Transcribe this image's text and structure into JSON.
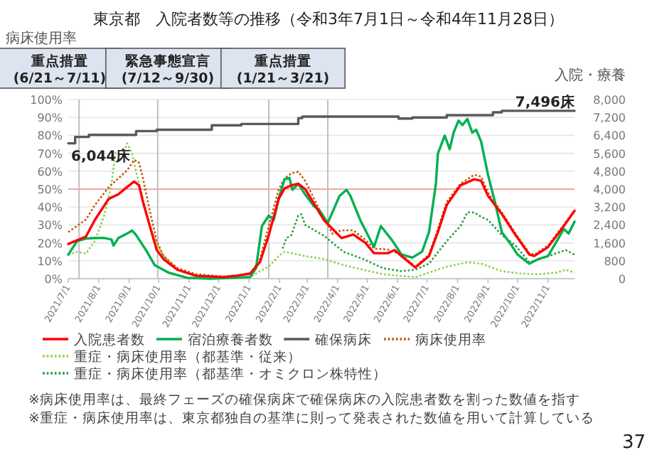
{
  "chart_data": {
    "type": "line",
    "title": "東京都　入院者数等の推移（令和3年7月1日～令和4年11月28日）",
    "ylabel": "病床使用率",
    "y2label": "入院・療養",
    "xlim": [
      "2021-07-01",
      "2022-11-28"
    ],
    "ylim": [
      0,
      100
    ],
    "xticks": [
      {
        "value": "2021-07-01",
        "label": "2021/7/1"
      },
      {
        "value": "2021-08-01",
        "label": "2021/8/1"
      },
      {
        "value": "2021-09-01",
        "label": "2021/9/1"
      },
      {
        "value": "2021-10-01",
        "label": "2021/10/1"
      },
      {
        "value": "2021-11-01",
        "label": "2021/11/1"
      },
      {
        "value": "2021-12-01",
        "label": "2021/12/1"
      },
      {
        "value": "2022-01-01",
        "label": "2022/1/1"
      },
      {
        "value": "2022-02-01",
        "label": "2022/2/1"
      },
      {
        "value": "2022-03-01",
        "label": "2022/3/1"
      },
      {
        "value": "2022-04-01",
        "label": "2022/4/1"
      },
      {
        "value": "2022-05-01",
        "label": "2022/5/1"
      },
      {
        "value": "2022-06-01",
        "label": "2022/6/1"
      },
      {
        "value": "2022-07-01",
        "label": "2022/7/1"
      },
      {
        "value": "2022-08-01",
        "label": "2022/8/1"
      },
      {
        "value": "2022-09-01",
        "label": "2022/9/1"
      },
      {
        "value": "2022-10-01",
        "label": "2022/10/1"
      },
      {
        "value": "2022-11-01",
        "label": "2022/11/1"
      }
    ],
    "yticks": [
      {
        "value": 0,
        "label": "0%"
      },
      {
        "value": 10,
        "label": "10%"
      },
      {
        "value": 20,
        "label": "20%"
      },
      {
        "value": 30,
        "label": "30%"
      },
      {
        "value": 40,
        "label": "40%"
      },
      {
        "value": 50,
        "label": "50%"
      },
      {
        "value": 60,
        "label": "60%"
      },
      {
        "value": 70,
        "label": "70%"
      },
      {
        "value": 80,
        "label": "80%"
      },
      {
        "value": 90,
        "label": "90%"
      },
      {
        "value": 100,
        "label": "100%"
      }
    ],
    "y2lim": [
      0,
      8000
    ],
    "y2ticks": [
      0,
      800,
      {
        "value": 1600,
        "label": "1,600"
      },
      {
        "value": 2400,
        "label": "2,400"
      },
      {
        "value": 3200,
        "label": "3,200"
      },
      {
        "value": 4000,
        "label": "4,000"
      },
      {
        "value": 4800,
        "label": "4,800"
      },
      {
        "value": 5600,
        "label": "5,600"
      },
      {
        "value": 6400,
        "label": "6,400"
      },
      {
        "value": 7200,
        "label": "7,200"
      },
      {
        "value": 8000,
        "label": "8,000"
      }
    ],
    "grid": "y",
    "legend": "bottom",
    "marker": "none",
    "ref_lines": [
      {
        "axis": "x",
        "value": "2021-07-12",
        "color": "#bfbfbf"
      },
      {
        "axis": "x",
        "value": "2021-09-30",
        "color": "#bfbfbf"
      },
      {
        "axis": "x",
        "value": "2022-01-21",
        "color": "#bfbfbf"
      },
      {
        "axis": "x",
        "value": "2022-03-22",
        "color": "#bfbfbf"
      },
      {
        "axis": "y",
        "value": 50,
        "color": "#f4a6a6"
      }
    ],
    "annotations": [
      "重点措置\n(6/21～7/11)",
      "緊急事態宣言\n(7/12～9/30)",
      "重点措置\n(1/21～3/21)",
      "6,044床",
      "7,496床",
      "※病床使用率は、最終フェーズの確保病床で確保病床の入院患者数を割った数値を指す",
      "※重症・病床使用率は、東京都独自の基準に則って発表された数値を用いて計算している",
      "37"
    ],
    "series": [
      {
        "name": "入院患者数",
        "color": "#ff0000",
        "axis": "y2",
        "line_style": "solid",
        "x": [
          "2021-07-01",
          "2021-07-19",
          "2021-07-28",
          "2021-08-11",
          "2021-08-21",
          "2021-08-30",
          "2021-09-06",
          "2021-09-11",
          "2021-09-15",
          "2021-09-22",
          "2021-09-29",
          "2021-10-06",
          "2021-10-20",
          "2021-11-08",
          "2021-12-06",
          "2021-12-19",
          "2022-01-02",
          "2022-01-12",
          "2022-01-21",
          "2022-01-31",
          "2022-02-06",
          "2022-02-13",
          "2022-02-20",
          "2022-02-27",
          "2022-03-18",
          "2022-04-05",
          "2022-04-17",
          "2022-04-29",
          "2022-05-08",
          "2022-05-22",
          "2022-05-29",
          "2022-06-05",
          "2022-06-19",
          "2022-07-03",
          "2022-07-12",
          "2022-07-21",
          "2022-08-04",
          "2022-08-18",
          "2022-08-25",
          "2022-09-01",
          "2022-09-15",
          "2022-09-29",
          "2022-10-13",
          "2022-10-18",
          "2022-11-01",
          "2022-11-15",
          "2022-11-28"
        ],
        "values": [
          1550,
          1880,
          2620,
          3560,
          3770,
          4100,
          4340,
          4170,
          3430,
          2350,
          1280,
          870,
          400,
          130,
          70,
          130,
          230,
          740,
          1950,
          3560,
          4030,
          4170,
          4240,
          4000,
          2620,
          1815,
          1975,
          1610,
          1140,
          1140,
          1280,
          1010,
          500,
          1010,
          2080,
          3290,
          4170,
          4440,
          4370,
          3700,
          2890,
          1950,
          1080,
          1010,
          1410,
          2220,
          3030
        ]
      },
      {
        "name": "宿泊療養者数",
        "color": "#00b050",
        "axis": "y2",
        "line_style": "solid",
        "x": [
          "2021-07-01",
          "2021-07-10",
          "2021-07-19",
          "2021-07-28",
          "2021-08-07",
          "2021-08-14",
          "2021-08-16",
          "2021-08-21",
          "2021-08-30",
          "2021-09-04",
          "2021-09-08",
          "2021-09-18",
          "2021-09-27",
          "2021-10-11",
          "2021-10-30",
          "2021-11-22",
          "2022-01-02",
          "2022-01-08",
          "2022-01-14",
          "2022-01-21",
          "2022-01-26",
          "2022-01-31",
          "2022-02-06",
          "2022-02-11",
          "2022-02-14",
          "2022-02-20",
          "2022-02-27",
          "2022-03-08",
          "2022-03-13",
          "2022-03-22",
          "2022-04-03",
          "2022-04-10",
          "2022-04-14",
          "2022-04-24",
          "2022-05-08",
          "2022-05-15",
          "2022-05-27",
          "2022-06-05",
          "2022-06-16",
          "2022-06-26",
          "2022-07-03",
          "2022-07-10",
          "2022-07-12",
          "2022-07-19",
          "2022-07-24",
          "2022-07-28",
          "2022-08-02",
          "2022-08-06",
          "2022-08-11",
          "2022-08-16",
          "2022-08-20",
          "2022-08-25",
          "2022-09-01",
          "2022-09-08",
          "2022-09-15",
          "2022-09-24",
          "2022-10-01",
          "2022-10-13",
          "2022-10-22",
          "2022-11-01",
          "2022-11-10",
          "2022-11-17",
          "2022-11-22",
          "2022-11-28"
        ],
        "values": [
          1075,
          1680,
          1790,
          1815,
          1815,
          1750,
          1480,
          1815,
          2020,
          2150,
          1950,
          1280,
          600,
          270,
          40,
          0,
          70,
          470,
          2350,
          2820,
          2620,
          3560,
          4440,
          4500,
          3970,
          4240,
          3760,
          3230,
          3090,
          2490,
          3700,
          3970,
          3700,
          2620,
          1410,
          2350,
          1680,
          1080,
          940,
          1210,
          2080,
          4240,
          5580,
          6390,
          5780,
          6520,
          7060,
          6860,
          7130,
          6520,
          6650,
          6120,
          4640,
          3430,
          2080,
          1550,
          1080,
          670,
          870,
          1010,
          1680,
          2220,
          2020,
          2550
        ]
      },
      {
        "name": "確保病床",
        "color": "#595959",
        "axis": "y2",
        "type": "step",
        "line_style": "solid",
        "x": [
          "2021-07-01",
          "2021-07-08",
          "2021-07-22",
          "2021-09-08",
          "2021-09-29",
          "2021-11-24",
          "2021-12-24",
          "2022-02-20",
          "2022-02-24",
          "2022-06-02",
          "2022-06-16",
          "2022-07-21",
          "2022-09-06",
          "2022-09-15",
          "2022-11-28"
        ],
        "values": [
          6044,
          6330,
          6420,
          6590,
          6650,
          6850,
          6910,
          7170,
          7240,
          7150,
          7200,
          7300,
          7430,
          7496,
          7496
        ]
      },
      {
        "name": "病床使用率",
        "color": "#c55a11",
        "line_style": "dotted",
        "x": [
          "2021-07-01",
          "2021-07-19",
          "2021-07-28",
          "2021-08-11",
          "2021-08-21",
          "2021-08-30",
          "2021-09-06",
          "2021-09-11",
          "2021-09-15",
          "2021-09-22",
          "2021-09-29",
          "2021-10-06",
          "2021-10-20",
          "2021-11-08",
          "2021-12-06",
          "2022-01-02",
          "2022-01-12",
          "2022-01-21",
          "2022-01-31",
          "2022-02-06",
          "2022-02-13",
          "2022-02-20",
          "2022-02-27",
          "2022-03-18",
          "2022-03-27",
          "2022-04-05",
          "2022-04-17",
          "2022-04-29",
          "2022-05-08",
          "2022-05-22",
          "2022-06-05",
          "2022-06-19",
          "2022-07-03",
          "2022-07-12",
          "2022-07-21",
          "2022-08-04",
          "2022-08-18",
          "2022-08-25",
          "2022-09-01",
          "2022-09-15",
          "2022-09-29",
          "2022-10-13",
          "2022-10-18",
          "2022-11-01",
          "2022-11-15",
          "2022-11-28"
        ],
        "values": [
          26,
          33,
          41,
          51,
          56,
          60.5,
          66.4,
          64.7,
          56,
          37.8,
          21,
          12.6,
          5.9,
          2.5,
          1.2,
          2.5,
          11,
          29.4,
          49.6,
          56,
          58.8,
          59.7,
          54.6,
          33.6,
          25,
          27,
          27,
          21.8,
          16.8,
          16.3,
          13.4,
          6.7,
          13.4,
          27.7,
          42.9,
          53,
          58,
          57,
          48,
          37,
          25.2,
          14.3,
          13.4,
          18.5,
          28.6,
          38
        ]
      },
      {
        "name": "重症・病床使用率（都基準・従来）",
        "color": "#92d050",
        "line_style": "dotted",
        "x": [
          "2021-07-01",
          "2021-07-10",
          "2021-07-19",
          "2021-07-28",
          "2021-08-07",
          "2021-08-14",
          "2021-08-18",
          "2021-08-25",
          "2021-08-30",
          "2021-09-04",
          "2021-09-08",
          "2021-09-15",
          "2021-09-22",
          "2021-09-29",
          "2021-10-06",
          "2021-10-20",
          "2021-11-08",
          "2021-12-06",
          "2022-01-02",
          "2022-01-12",
          "2022-01-21",
          "2022-01-31",
          "2022-02-06",
          "2022-02-13",
          "2022-02-27",
          "2022-03-18",
          "2022-04-07",
          "2022-04-27",
          "2022-05-17",
          "2022-06-01",
          "2022-06-19",
          "2022-07-03",
          "2022-07-21",
          "2022-08-11",
          "2022-08-25",
          "2022-09-15",
          "2022-10-04",
          "2022-10-22",
          "2022-11-10",
          "2022-11-19",
          "2022-11-28"
        ],
        "values": [
          13.4,
          15,
          14,
          21,
          36,
          53,
          70,
          69,
          75.6,
          69.7,
          59.7,
          44.5,
          29.4,
          19.3,
          12.6,
          5,
          1.7,
          0.8,
          0.8,
          4.2,
          6.7,
          12.6,
          15,
          14.3,
          12.6,
          11,
          7.6,
          5,
          2.5,
          1.7,
          0.8,
          3.4,
          6.7,
          9.2,
          8.4,
          4.2,
          2.9,
          2.5,
          3.4,
          5,
          3.4
        ]
      },
      {
        "name": "重症・病床使用率（都基準・オミクロン株特性）",
        "color": "#2e9e3e",
        "line_style": "dotted",
        "x": [
          "2022-02-04",
          "2022-02-08",
          "2022-02-13",
          "2022-02-20",
          "2022-02-23",
          "2022-02-27",
          "2022-03-18",
          "2022-04-07",
          "2022-04-27",
          "2022-05-17",
          "2022-06-05",
          "2022-06-19",
          "2022-07-03",
          "2022-07-21",
          "2022-08-04",
          "2022-08-11",
          "2022-08-18",
          "2022-08-25",
          "2022-09-01",
          "2022-09-15",
          "2022-09-29",
          "2022-10-13",
          "2022-10-24",
          "2022-11-10",
          "2022-11-19",
          "2022-11-28"
        ],
        "values": [
          16.8,
          22.7,
          24.4,
          35.3,
          36,
          30,
          24,
          15,
          11,
          5.9,
          4.2,
          5,
          8.4,
          21,
          29.4,
          37,
          37,
          34.5,
          32.8,
          24.4,
          18.5,
          9.2,
          11,
          14.3,
          16,
          13.4
        ]
      }
    ]
  }
}
